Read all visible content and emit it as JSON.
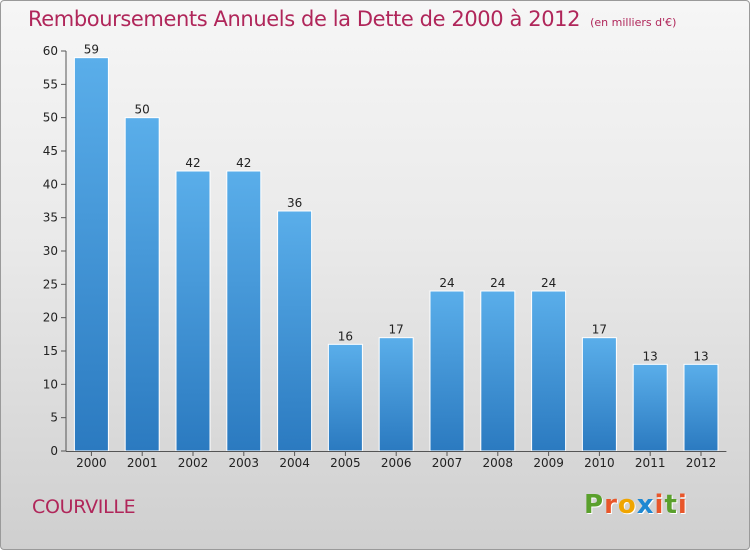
{
  "chart_data": {
    "type": "bar",
    "title": "Remboursements Annuels de la Dette de 2000 à 2012",
    "subtitle": "(en milliers d'€)",
    "categories": [
      "2000",
      "2001",
      "2002",
      "2003",
      "2004",
      "2005",
      "2006",
      "2007",
      "2008",
      "2009",
      "2010",
      "2011",
      "2012"
    ],
    "values": [
      59,
      50,
      42,
      42,
      36,
      16,
      17,
      24,
      24,
      24,
      17,
      13,
      13
    ],
    "ylim": [
      0,
      60
    ],
    "yticks": [
      0,
      5,
      10,
      15,
      20,
      25,
      30,
      35,
      40,
      45,
      50,
      55,
      60
    ],
    "grid": false,
    "legend": "none",
    "bar_color": "#3d8fd6"
  },
  "commune": "COURVILLE",
  "logo": {
    "text": "Proxiti",
    "letter_colors": [
      "#5aa02c",
      "#e8562a",
      "#f0a500",
      "#1e88d2",
      "#e8562a",
      "#5aa02c",
      "#e8562a"
    ]
  },
  "colors": {
    "title": "#b0265a",
    "axis": "#555555"
  }
}
